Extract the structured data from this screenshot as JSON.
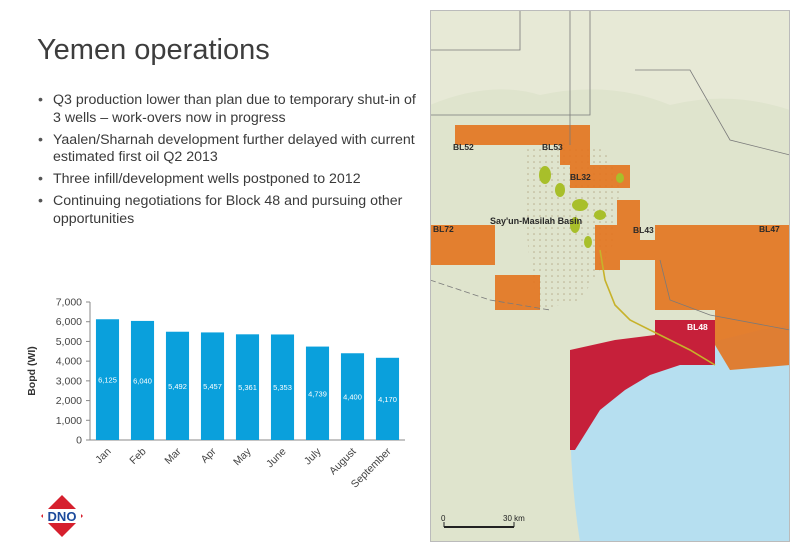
{
  "slide": {
    "title": "Yemen operations",
    "bullets": [
      "Q3 production lower than plan due to temporary shut-in of 3 wells – work-overs now in progress",
      "Yaalen/Sharnah development  further delayed with current estimated first oil Q2 2013",
      "Three infill/development wells postponed to 2012",
      "Continuing negotiations for Block 48 and pursuing other opportunities"
    ],
    "logo_text": "DNO"
  },
  "chart_data": {
    "type": "bar",
    "categories": [
      "Jan",
      "Feb",
      "Mar",
      "Apr",
      "May",
      "June",
      "July",
      "August",
      "September"
    ],
    "values": [
      6125,
      6040,
      5492,
      5457,
      5361,
      5353,
      4739,
      4400,
      4170
    ],
    "value_labels": [
      "6,125",
      "6,040",
      "5,492",
      "5,457",
      "5,361",
      "5,353",
      "4,739",
      "4,400",
      "4,170"
    ],
    "title": "",
    "xlabel": "",
    "ylabel": "Bopd (WI)",
    "ylim": [
      0,
      7000
    ],
    "yticks": [
      0,
      1000,
      2000,
      3000,
      4000,
      5000,
      6000,
      7000
    ],
    "ytick_labels": [
      "0",
      "1,000",
      "2,000",
      "3,000",
      "4,000",
      "5,000",
      "6,000",
      "7,000"
    ],
    "grid": false,
    "bar_color": "#0aa0dc"
  },
  "map": {
    "blocks": [
      "BL52",
      "BL53",
      "BL32",
      "BL72",
      "BL43",
      "BL47",
      "BL48"
    ],
    "basin_label": "Say'un-Masilah Basin",
    "scale_start": "0",
    "scale_end": "30 km",
    "colors": {
      "sea": "#b6dff0",
      "land": "#dfe4cd",
      "block_orange": "#e3731e",
      "block_red": "#c6203a",
      "fields": "#a8bf2a"
    }
  }
}
